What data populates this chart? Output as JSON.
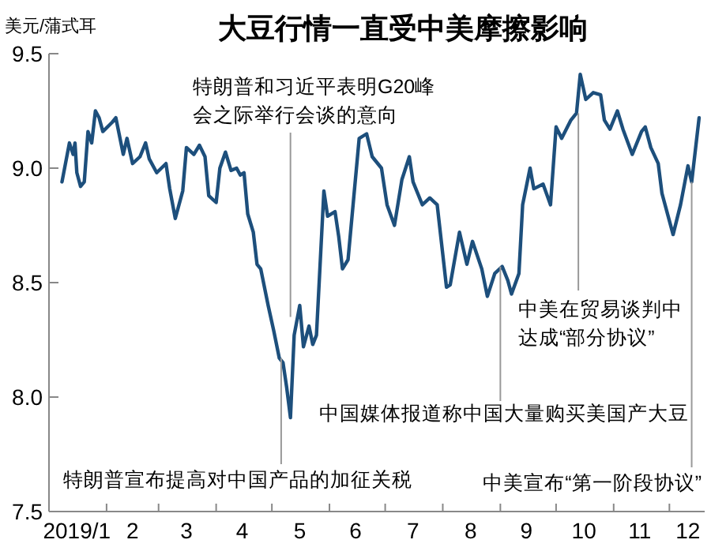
{
  "chart_data": {
    "type": "line",
    "title": "大豆行情一直受中美摩擦影响",
    "ylabel": "美元/蒲式耳",
    "x": [
      "2019-01-08",
      "2019-01-12",
      "2019-01-14",
      "2019-01-15",
      "2019-01-16",
      "2019-01-18",
      "2019-01-20",
      "2019-01-22",
      "2019-01-24",
      "2019-01-26",
      "2019-01-28",
      "2019-01-30",
      "2019-02-04",
      "2019-02-06",
      "2019-02-10",
      "2019-02-12",
      "2019-02-15",
      "2019-02-19",
      "2019-02-22",
      "2019-02-24",
      "2019-02-28",
      "2019-03-05",
      "2019-03-07",
      "2019-03-10",
      "2019-03-14",
      "2019-03-16",
      "2019-03-20",
      "2019-03-23",
      "2019-03-26",
      "2019-03-28",
      "2019-04-01",
      "2019-04-03",
      "2019-04-06",
      "2019-04-09",
      "2019-04-12",
      "2019-04-14",
      "2019-04-16",
      "2019-04-18",
      "2019-04-21",
      "2019-04-23",
      "2019-04-25",
      "2019-04-29",
      "2019-05-02",
      "2019-05-05",
      "2019-05-07",
      "2019-05-09",
      "2019-05-11",
      "2019-05-13",
      "2019-05-16",
      "2019-05-18",
      "2019-05-21",
      "2019-05-23",
      "2019-05-25",
      "2019-05-29",
      "2019-05-31",
      "2019-06-04",
      "2019-06-06",
      "2019-06-08",
      "2019-06-11",
      "2019-06-17",
      "2019-06-21",
      "2019-06-24",
      "2019-06-29",
      "2019-07-02",
      "2019-07-06",
      "2019-07-10",
      "2019-07-14",
      "2019-07-16",
      "2019-07-21",
      "2019-07-25",
      "2019-07-29",
      "2019-08-03",
      "2019-08-05",
      "2019-08-10",
      "2019-08-14",
      "2019-08-17",
      "2019-08-22",
      "2019-08-25",
      "2019-08-29",
      "2019-09-02",
      "2019-09-05",
      "2019-09-07",
      "2019-09-11",
      "2019-09-13",
      "2019-09-17",
      "2019-09-19",
      "2019-09-24",
      "2019-09-28",
      "2019-10-01",
      "2019-10-04",
      "2019-10-09",
      "2019-10-12",
      "2019-10-14",
      "2019-10-17",
      "2019-10-21",
      "2019-10-25",
      "2019-10-27",
      "2019-10-30",
      "2019-11-03",
      "2019-11-06",
      "2019-11-11",
      "2019-11-16",
      "2019-11-18",
      "2019-11-21",
      "2019-11-25",
      "2019-11-27",
      "2019-12-03",
      "2019-12-07",
      "2019-12-11",
      "2019-12-13",
      "2019-12-17"
    ],
    "series": [
      {
        "color": "#1d4f7c",
        "values": [
          8.94,
          9.11,
          9.06,
          9.11,
          8.98,
          8.92,
          8.94,
          9.16,
          9.11,
          9.25,
          9.22,
          9.16,
          9.2,
          9.22,
          9.06,
          9.13,
          9.02,
          9.05,
          9.11,
          9.04,
          8.98,
          9.02,
          8.91,
          8.78,
          8.9,
          9.09,
          9.06,
          9.1,
          9.05,
          8.88,
          8.85,
          9.0,
          9.07,
          8.99,
          9.0,
          8.97,
          8.98,
          8.8,
          8.72,
          8.58,
          8.56,
          8.4,
          8.29,
          8.17,
          8.15,
          8.04,
          7.91,
          8.27,
          8.4,
          8.22,
          8.31,
          8.23,
          8.27,
          8.9,
          8.79,
          8.81,
          8.7,
          8.56,
          8.6,
          9.13,
          9.15,
          9.05,
          9.0,
          8.84,
          8.75,
          8.95,
          9.05,
          8.94,
          8.84,
          8.87,
          8.84,
          8.48,
          8.49,
          8.72,
          8.58,
          8.68,
          8.56,
          8.44,
          8.54,
          8.57,
          8.51,
          8.45,
          8.54,
          8.84,
          9.0,
          8.91,
          8.93,
          8.84,
          9.18,
          9.13,
          9.21,
          9.24,
          9.41,
          9.3,
          9.33,
          9.32,
          9.21,
          9.17,
          9.25,
          9.17,
          9.06,
          9.16,
          9.18,
          9.09,
          9.02,
          8.89,
          8.71,
          8.84,
          9.01,
          8.94,
          9.22
        ]
      }
    ],
    "xlim": [
      "2019-01-01",
      "2019-12-20"
    ],
    "xticks": [
      {
        "value": "2019-01-16",
        "label": "2019/1"
      },
      {
        "value": "2019-02-01",
        "label": null
      },
      {
        "value": "2019-02-15",
        "label": "2"
      },
      {
        "value": "2019-03-01",
        "label": null
      },
      {
        "value": "2019-03-16",
        "label": "3"
      },
      {
        "value": "2019-04-01",
        "label": null
      },
      {
        "value": "2019-04-15",
        "label": "4"
      },
      {
        "value": "2019-05-01",
        "label": null
      },
      {
        "value": "2019-05-16",
        "label": "5"
      },
      {
        "value": "2019-06-01",
        "label": null
      },
      {
        "value": "2019-06-15",
        "label": "6"
      },
      {
        "value": "2019-07-01",
        "label": null
      },
      {
        "value": "2019-07-16",
        "label": "7"
      },
      {
        "value": "2019-08-01",
        "label": null
      },
      {
        "value": "2019-08-16",
        "label": "8"
      },
      {
        "value": "2019-09-01",
        "label": null
      },
      {
        "value": "2019-09-15",
        "label": "9"
      },
      {
        "value": "2019-10-01",
        "label": null
      },
      {
        "value": "2019-10-16",
        "label": "10"
      },
      {
        "value": "2019-11-01",
        "label": null
      },
      {
        "value": "2019-11-15",
        "label": "11"
      },
      {
        "value": "2019-12-01",
        "label": null
      },
      {
        "value": "2019-12-11",
        "label": "12"
      }
    ],
    "ylim": [
      7.5,
      9.5
    ],
    "yticks": [
      7.5,
      {
        "value": 8,
        "label": "8.0"
      },
      8.5,
      {
        "value": 9,
        "label": "9.0"
      },
      9.5
    ],
    "annotations": [
      {
        "text": "特朗普宣布提高对中国产品的加征关税",
        "x": "2019-05-06",
        "y": 8.17
      },
      {
        "text": "特朗普和习近平表明G20峰会之际举行会谈的意向",
        "x": "2019-05-11",
        "y": 8.35
      },
      {
        "text": "中国媒体报道称中国大量购买美国产大豆",
        "x": "2019-09-01",
        "y": 8.57
      },
      {
        "text": "中美在贸易谈判中达成“部分协议”",
        "x": "2019-10-13",
        "y": 9.24
      },
      {
        "text": "中美宣布“第一阶段协议”",
        "x": "2019-12-13",
        "y": 8.94
      }
    ]
  }
}
